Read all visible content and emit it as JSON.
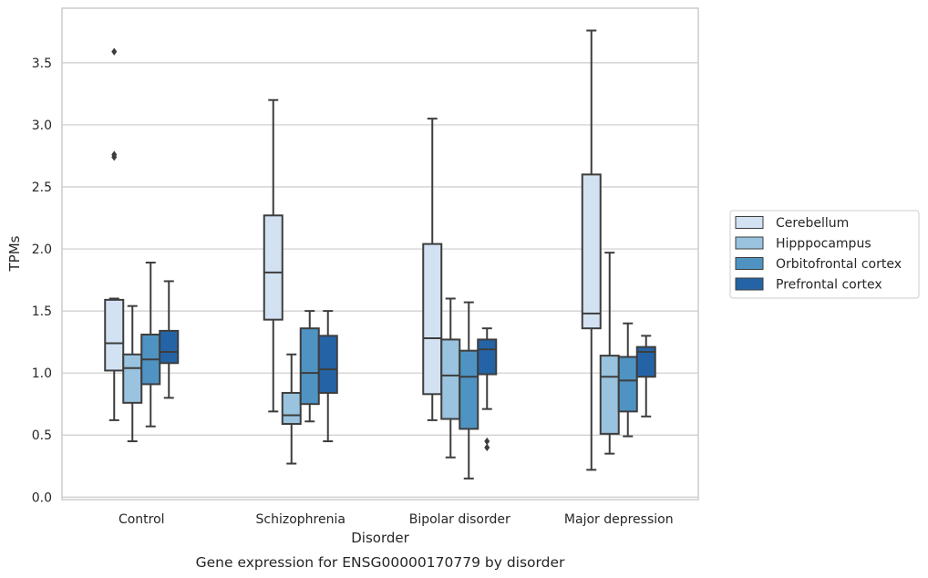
{
  "chart_data": {
    "type": "box",
    "caption": "Gene expression for ENSG00000170779 by disorder",
    "xlabel": "Disorder",
    "ylabel": "TPMs",
    "ylim": [
      -0.02,
      3.94
    ],
    "yticks": [
      "0.0",
      "0.5",
      "1.0",
      "1.5",
      "2.0",
      "2.5",
      "3.0",
      "3.5"
    ],
    "ytick_values": [
      0,
      0.5,
      1.0,
      1.5,
      2.0,
      2.5,
      3.0,
      3.5
    ],
    "grid": "horizontal",
    "legend_position": "right",
    "categories": [
      "Control",
      "Schizophrenia",
      "Bipolar disorder",
      "Major depression"
    ],
    "series": [
      {
        "name": "Cerebellum",
        "color": "#d3e2f2",
        "boxes": [
          {
            "whislo": 0.62,
            "q1": 1.02,
            "med": 1.24,
            "q3": 1.59,
            "whishi": 1.6,
            "fliers": [
              2.74,
              2.76,
              3.59
            ]
          },
          {
            "whislo": 0.69,
            "q1": 1.43,
            "med": 1.81,
            "q3": 2.27,
            "whishi": 3.2,
            "fliers": []
          },
          {
            "whislo": 0.62,
            "q1": 0.83,
            "med": 1.28,
            "q3": 2.04,
            "whishi": 3.05,
            "fliers": []
          },
          {
            "whislo": 0.22,
            "q1": 1.36,
            "med": 1.48,
            "q3": 2.6,
            "whishi": 3.76,
            "fliers": []
          }
        ]
      },
      {
        "name": "Hipppocampus",
        "color": "#99c3de",
        "boxes": [
          {
            "whislo": 0.45,
            "q1": 0.76,
            "med": 1.04,
            "q3": 1.15,
            "whishi": 1.54,
            "fliers": []
          },
          {
            "whislo": 0.27,
            "q1": 0.59,
            "med": 0.66,
            "q3": 0.84,
            "whishi": 1.15,
            "fliers": []
          },
          {
            "whislo": 0.32,
            "q1": 0.63,
            "med": 0.98,
            "q3": 1.27,
            "whishi": 1.6,
            "fliers": []
          },
          {
            "whislo": 0.35,
            "q1": 0.51,
            "med": 0.97,
            "q3": 1.14,
            "whishi": 1.97,
            "fliers": []
          }
        ]
      },
      {
        "name": "Orbitofrontal cortex",
        "color": "#4f93c3",
        "boxes": [
          {
            "whislo": 0.57,
            "q1": 0.91,
            "med": 1.11,
            "q3": 1.31,
            "whishi": 1.89,
            "fliers": []
          },
          {
            "whislo": 0.61,
            "q1": 0.75,
            "med": 1.0,
            "q3": 1.36,
            "whishi": 1.5,
            "fliers": []
          },
          {
            "whislo": 0.15,
            "q1": 0.55,
            "med": 0.97,
            "q3": 1.18,
            "whishi": 1.57,
            "fliers": []
          },
          {
            "whislo": 0.49,
            "q1": 0.69,
            "med": 0.94,
            "q3": 1.13,
            "whishi": 1.4,
            "fliers": []
          }
        ]
      },
      {
        "name": "Prefrontal cortex",
        "color": "#2464a6",
        "boxes": [
          {
            "whislo": 0.8,
            "q1": 1.08,
            "med": 1.17,
            "q3": 1.34,
            "whishi": 1.74,
            "fliers": []
          },
          {
            "whislo": 0.45,
            "q1": 0.84,
            "med": 1.03,
            "q3": 1.3,
            "whishi": 1.5,
            "fliers": []
          },
          {
            "whislo": 0.71,
            "q1": 0.99,
            "med": 1.19,
            "q3": 1.27,
            "whishi": 1.36,
            "fliers": [
              0.4,
              0.45
            ]
          },
          {
            "whislo": 0.65,
            "q1": 0.97,
            "med": 1.17,
            "q3": 1.21,
            "whishi": 1.3,
            "fliers": []
          }
        ]
      }
    ]
  }
}
